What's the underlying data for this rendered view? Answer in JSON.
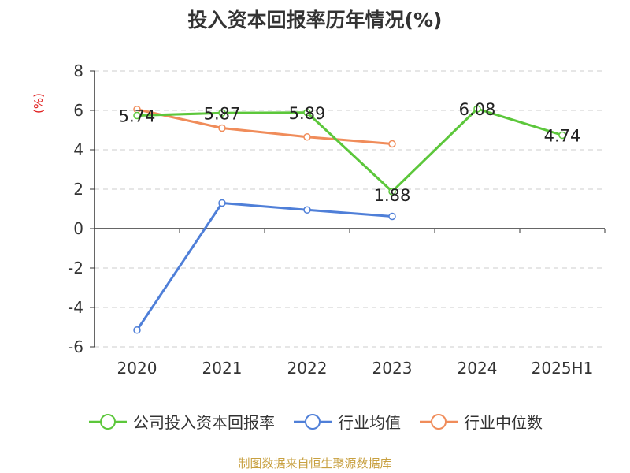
{
  "title": "投入资本回报率历年情况(%)",
  "unit_label": "(%)",
  "source": "制图数据来自恒生聚源数据库",
  "colors": {
    "company": "#5cc73b",
    "avg": "#4f7fd8",
    "median": "#f08c5a",
    "axis": "#333333",
    "grid": "#cccccc"
  },
  "chart_data": {
    "type": "line",
    "categories": [
      "2020",
      "2021",
      "2022",
      "2023",
      "2024",
      "2025H1"
    ],
    "ylim": [
      -6,
      8
    ],
    "yticks": [
      -6,
      -4,
      -2,
      0,
      2,
      4,
      6,
      8
    ],
    "grid": true,
    "legend_position": "bottom",
    "series": [
      {
        "name": "公司投入资本回报率",
        "color": "#5cc73b",
        "values": [
          5.74,
          5.87,
          5.89,
          1.88,
          6.08,
          4.74
        ],
        "labels": true
      },
      {
        "name": "行业均值",
        "color": "#4f7fd8",
        "values": [
          -5.15,
          1.3,
          0.95,
          0.62,
          null,
          null
        ],
        "labels": false
      },
      {
        "name": "行业中位数",
        "color": "#f08c5a",
        "values": [
          6.05,
          5.1,
          4.65,
          4.3,
          null,
          null
        ],
        "labels": false
      }
    ]
  }
}
